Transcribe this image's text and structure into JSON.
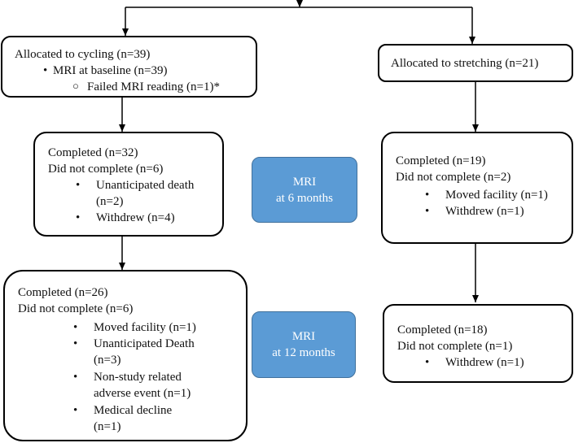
{
  "cycling": {
    "allocated": {
      "title": "Allocated to cycling (n=39)",
      "items": [
        {
          "text": "MRI at baseline (n=39)",
          "subitems": [
            "Failed MRI reading (n=1)*"
          ]
        }
      ]
    },
    "six_months": {
      "completed": "Completed (n=32)",
      "not_complete": "Did not complete (n=6)",
      "items": [
        [
          "Unanticipated death",
          "(n=2)"
        ],
        [
          "Withdrew (n=4)"
        ]
      ]
    },
    "twelve_months": {
      "completed": "Completed (n=26)",
      "not_complete": "Did not complete (n=6)",
      "items": [
        [
          "Moved facility (n=1)"
        ],
        [
          "Unanticipated Death",
          "(n=3)"
        ],
        [
          "Non-study related",
          "adverse event (n=1)"
        ],
        [
          "Medical decline",
          "(n=1)"
        ]
      ]
    }
  },
  "stretching": {
    "allocated": {
      "title": "Allocated to stretching (n=21)"
    },
    "six_months": {
      "completed": "Completed (n=19)",
      "not_complete": "Did not complete (n=2)",
      "items": [
        [
          "Moved facility (n=1)"
        ],
        [
          "Withdrew (n=1)"
        ]
      ]
    },
    "twelve_months": {
      "completed": "Completed (n=18)",
      "not_complete": "Did not complete (n=1)",
      "items": [
        [
          "Withdrew (n=1)"
        ]
      ]
    }
  },
  "timepoints": {
    "six_months": [
      "MRI",
      "at 6 months"
    ],
    "twelve_months": [
      "MRI",
      "at 12 months"
    ]
  },
  "colors": {
    "timepoint_fill": "#5b9bd5",
    "timepoint_border": "#41719c",
    "box_border": "#000000"
  }
}
